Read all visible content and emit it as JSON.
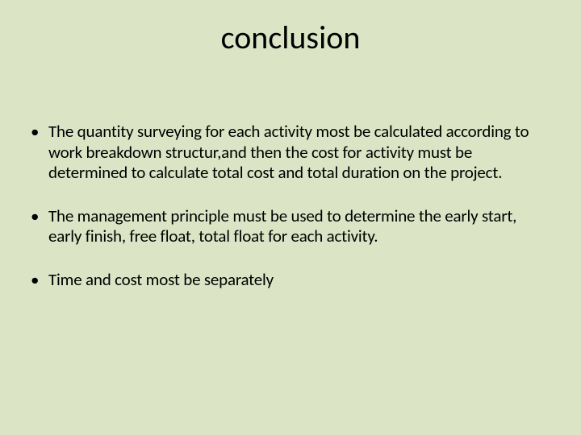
{
  "slide": {
    "background_color": "#dbe5c6",
    "text_color": "#000000",
    "title": "conclusion",
    "title_fontsize": 40,
    "body_fontsize": 21,
    "font_family": "Calibri",
    "bullets": [
      "The quantity surveying for each activity most be calculated according to work breakdown structur,and then the cost for activity must be determined to calculate total cost and total duration on the project.",
      "The management principle must be used to determine the early start, early finish, free float, total float for each activity.",
      "Time and cost most be separately"
    ]
  }
}
